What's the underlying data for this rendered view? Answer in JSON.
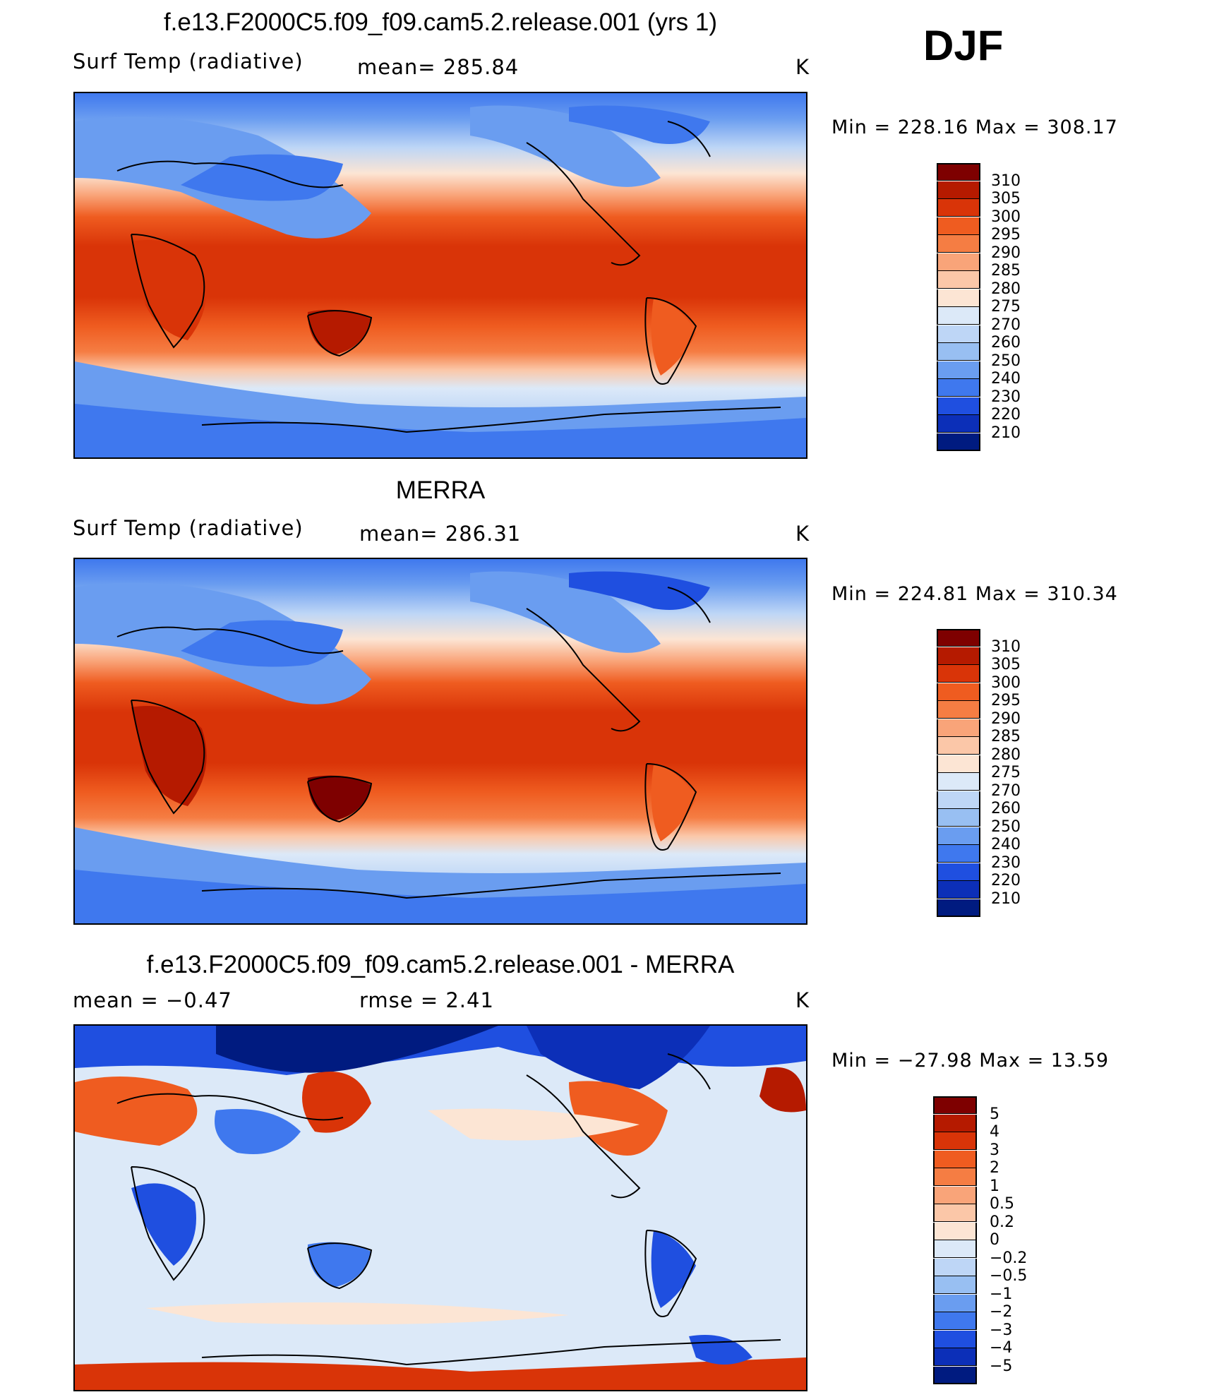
{
  "season": "DJF",
  "units": "K",
  "panels": [
    {
      "id": "model",
      "title": "f.e13.F2000C5.f09_f09.cam5.2.release.001 (yrs 1)",
      "variable": "Surf Temp (radiative)",
      "stat1": "mean=  285.84",
      "stat2": "",
      "units": "K",
      "minmax": "Min  =  228.16  Max  =  308.17",
      "colorbar": {
        "levels": [
          "310",
          "305",
          "300",
          "295",
          "290",
          "285",
          "280",
          "275",
          "270",
          "260",
          "250",
          "240",
          "230",
          "220",
          "210"
        ],
        "colors": [
          "#7e0000",
          "#b51a00",
          "#d93408",
          "#ef5c20",
          "#f57d43",
          "#f9a479",
          "#fbc7a8",
          "#fce5d4",
          "#dce9f8",
          "#bed6f6",
          "#98bff2",
          "#6a9df0",
          "#3f78ee",
          "#1f4fe0",
          "#0c2fb8",
          "#001b80"
        ]
      }
    },
    {
      "id": "obs",
      "title": "MERRA",
      "variable": "Surf Temp (radiative)",
      "stat1": "mean=  286.31",
      "stat2": "",
      "units": "K",
      "minmax": "Min  =  224.81  Max  =  310.34",
      "colorbar": {
        "levels": [
          "310",
          "305",
          "300",
          "295",
          "290",
          "285",
          "280",
          "275",
          "270",
          "260",
          "250",
          "240",
          "230",
          "220",
          "210"
        ],
        "colors": [
          "#7e0000",
          "#b51a00",
          "#d93408",
          "#ef5c20",
          "#f57d43",
          "#f9a479",
          "#fbc7a8",
          "#fce5d4",
          "#dce9f8",
          "#bed6f6",
          "#98bff2",
          "#6a9df0",
          "#3f78ee",
          "#1f4fe0",
          "#0c2fb8",
          "#001b80"
        ]
      }
    },
    {
      "id": "diff",
      "title": "f.e13.F2000C5.f09_f09.cam5.2.release.001 - MERRA",
      "variable": "mean =    −0.47",
      "stat1": "rmse =     2.41",
      "stat2": "",
      "units": "K",
      "minmax": "Min  =  −27.98  Max  =    13.59",
      "colorbar": {
        "levels": [
          "5",
          "4",
          "3",
          "2",
          "1",
          "0.5",
          "0.2",
          "0",
          "−0.2",
          "−0.5",
          "−1",
          "−2",
          "−3",
          "−4",
          "−5"
        ],
        "colors": [
          "#7e0000",
          "#b51a00",
          "#d93408",
          "#ef5c20",
          "#f57d43",
          "#f9a479",
          "#fbc7a8",
          "#fce5d4",
          "#dce9f8",
          "#bed6f6",
          "#98bff2",
          "#6a9df0",
          "#3f78ee",
          "#1f4fe0",
          "#0c2fb8",
          "#001b80"
        ]
      }
    }
  ]
}
